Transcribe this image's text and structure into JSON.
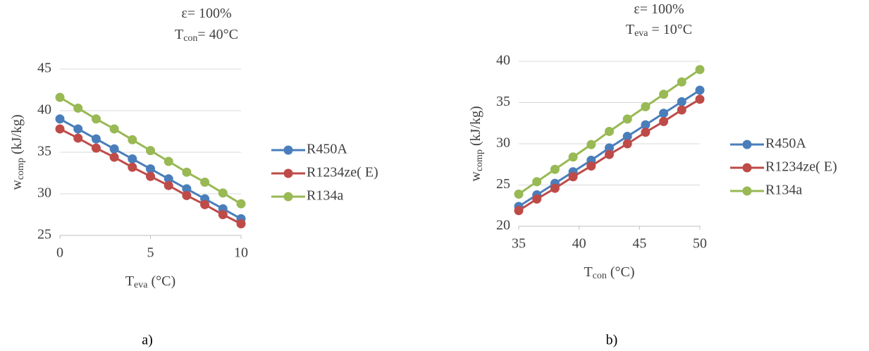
{
  "chart_data": [
    {
      "type": "line",
      "annotations": [
        {
          "text": "ε= 100%"
        },
        {
          "text": "T",
          "sub": "con",
          "rest": "= 40°C"
        }
      ],
      "ylabel": {
        "text": "w",
        "sub": "comp",
        "rest": " (kJ/kg)"
      },
      "xlabel": {
        "text": "T",
        "sub": "eva",
        "rest": " (°C)"
      },
      "caption": "a)",
      "x": [
        0,
        1,
        2,
        3,
        4,
        5,
        6,
        7,
        8,
        9,
        10
      ],
      "xlim": [
        0,
        10
      ],
      "xticks": [
        0,
        5,
        10
      ],
      "ylim": [
        25,
        45
      ],
      "yticks": [
        25,
        30,
        35,
        40,
        45
      ],
      "grid": true,
      "legend": "right",
      "series": [
        {
          "name": "R450A",
          "color": "#4a7ebb",
          "values": [
            39.0,
            37.8,
            36.6,
            35.4,
            34.2,
            33.0,
            31.8,
            30.6,
            29.4,
            28.2,
            27.0
          ]
        },
        {
          "name": "R1234ze( E)",
          "color": "#be4b48",
          "values": [
            37.8,
            36.7,
            35.5,
            34.4,
            33.2,
            32.1,
            31.0,
            29.8,
            28.7,
            27.5,
            26.4
          ]
        },
        {
          "name": "R134a",
          "color": "#98b954",
          "values": [
            41.6,
            40.3,
            39.0,
            37.8,
            36.5,
            35.2,
            33.9,
            32.6,
            31.4,
            30.1,
            28.8
          ]
        }
      ]
    },
    {
      "type": "line",
      "annotations": [
        {
          "text": "ε= 100%"
        },
        {
          "text": "T",
          "sub": "eva",
          "rest": " = 10°C"
        }
      ],
      "ylabel": {
        "text": "w",
        "sub": "comp",
        "rest": " (kJ/kg)"
      },
      "xlabel": {
        "text": "T",
        "sub": "con",
        "rest": " (°C)"
      },
      "caption": "b)",
      "x": [
        35,
        36.5,
        38,
        39.5,
        41,
        42.5,
        44,
        45.5,
        47,
        48.5,
        50
      ],
      "xlim": [
        35,
        50
      ],
      "xticks": [
        35,
        40,
        45,
        50
      ],
      "ylim": [
        20,
        40
      ],
      "yticks": [
        20,
        25,
        30,
        35,
        40
      ],
      "grid": true,
      "legend": "right",
      "series": [
        {
          "name": "R450A",
          "color": "#4a7ebb",
          "values": [
            22.4,
            23.8,
            25.2,
            26.6,
            28.0,
            29.5,
            30.9,
            32.3,
            33.7,
            35.1,
            36.5
          ]
        },
        {
          "name": "R1234ze( E)",
          "color": "#be4b48",
          "values": [
            21.9,
            23.3,
            24.6,
            26.0,
            27.3,
            28.7,
            30.0,
            31.4,
            32.7,
            34.1,
            35.4
          ]
        },
        {
          "name": "R134a",
          "color": "#98b954",
          "values": [
            23.9,
            25.4,
            26.9,
            28.4,
            29.9,
            31.5,
            33.0,
            34.5,
            36.0,
            37.5,
            39.0
          ]
        }
      ]
    }
  ]
}
